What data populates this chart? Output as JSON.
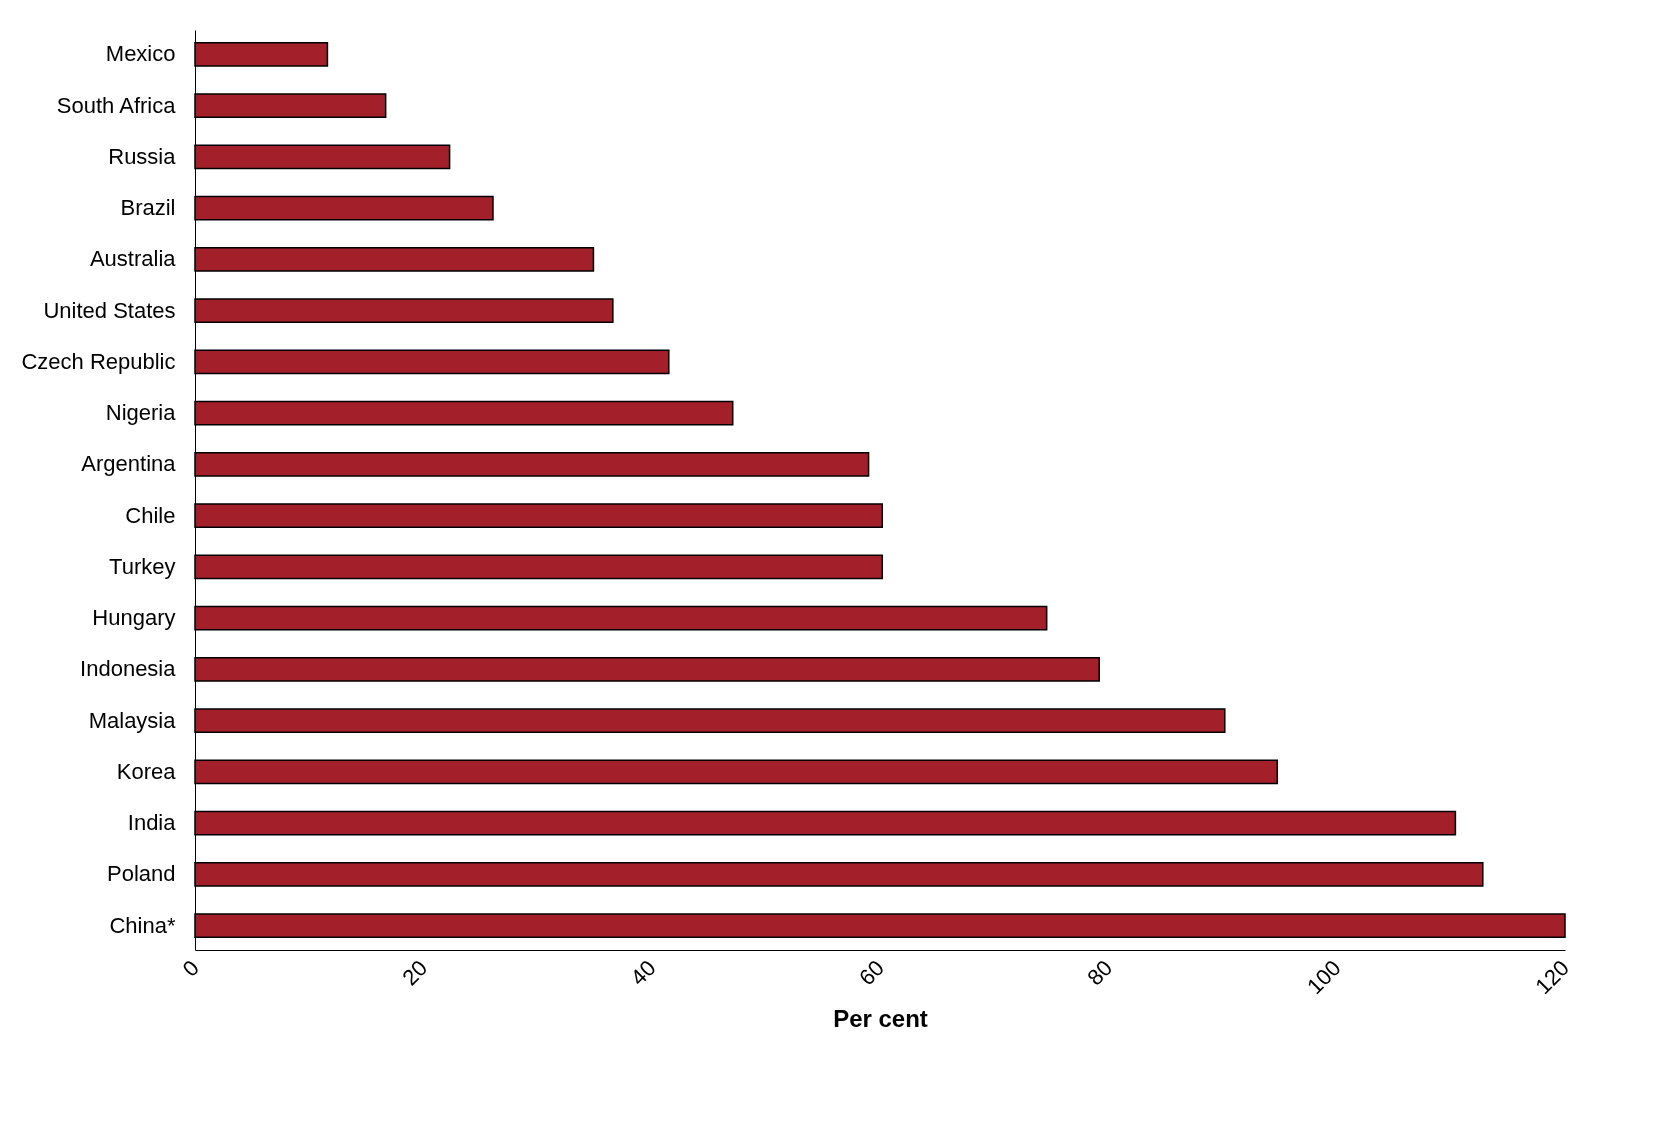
{
  "chart_data": {
    "type": "bar",
    "orientation": "horizontal",
    "xlabel": "Per cent",
    "categories": [
      "Mexico",
      "South Africa",
      "Russia",
      "Brazil",
      "Australia",
      "United States",
      "Czech Republic",
      "Nigeria",
      "Argentina",
      "Chile",
      "Turkey",
      "Hungary",
      "Indonesia",
      "Malaysia",
      "Korea",
      "India",
      "Poland",
      "China*"
    ],
    "values": [
      11.6,
      16.7,
      22.3,
      26.1,
      34.9,
      36.6,
      41.5,
      47.1,
      59,
      60.2,
      60.2,
      74.6,
      79.2,
      90.2,
      94.8,
      110.4,
      112.8,
      120
    ],
    "color": "#a3202a",
    "xlim": [
      0,
      120
    ],
    "xticks": [
      0,
      20,
      40,
      60,
      80,
      100,
      120
    ],
    "grid": false
  }
}
